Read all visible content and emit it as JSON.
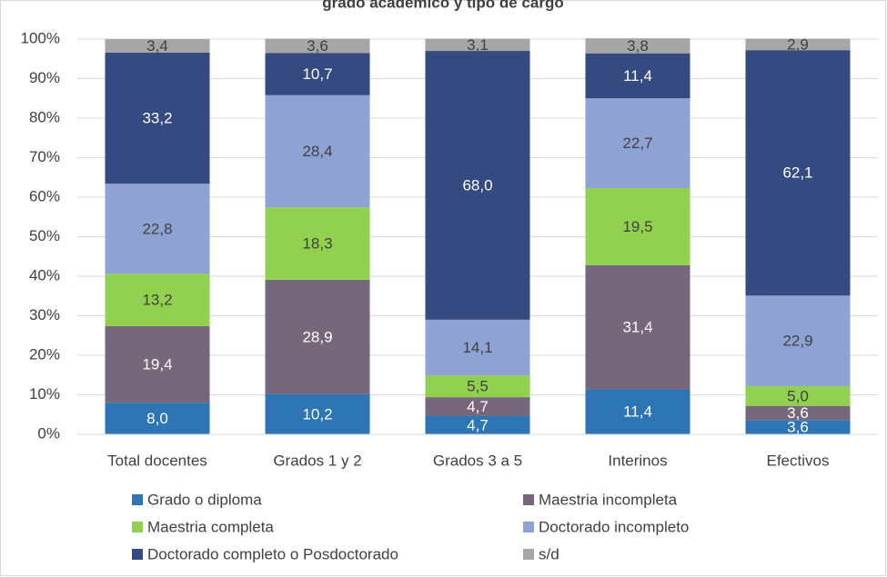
{
  "chart_data": {
    "type": "stacked_bar",
    "title": "grado académico y tipo de cargo",
    "categories": [
      "Total docentes",
      "Grados 1 y 2",
      "Grados 3 a 5",
      "Interinos",
      "Efectivos"
    ],
    "series": [
      {
        "name": "Grado o diploma",
        "color": "#2e75b6",
        "values": [
          8.0,
          10.2,
          4.7,
          11.4,
          3.6
        ],
        "value_labels": [
          "8,0",
          "10,2",
          "4,7",
          "11,4",
          "3,6"
        ]
      },
      {
        "name": "Maestria incompleta",
        "color": "#76677a",
        "values": [
          19.4,
          28.9,
          4.7,
          31.4,
          3.6
        ],
        "value_labels": [
          "19,4",
          "28,9",
          "4,7",
          "31,4",
          "3,6"
        ]
      },
      {
        "name": "Maestria completa",
        "color": "#92d050",
        "values": [
          13.2,
          18.3,
          5.5,
          19.5,
          5.0
        ],
        "value_labels": [
          "13,2",
          "18,3",
          "5,5",
          "19,5",
          "5,0"
        ]
      },
      {
        "name": "Doctorado incompleto",
        "color": "#8fa2d4",
        "values": [
          22.8,
          28.4,
          14.1,
          22.7,
          22.9
        ],
        "value_labels": [
          "22,8",
          "28,4",
          "14,1",
          "22,7",
          "22,9"
        ]
      },
      {
        "name": "Doctorado completo o Posdoctorado",
        "color": "#354a80",
        "values": [
          33.2,
          10.7,
          68.0,
          11.4,
          62.1
        ],
        "value_labels": [
          "33,2",
          "10,7",
          "68,0",
          "11,4",
          "62,1"
        ]
      },
      {
        "name": "s/d",
        "color": "#a6a6a6",
        "values": [
          3.4,
          3.6,
          3.1,
          3.8,
          2.9
        ],
        "value_labels": [
          "3,4",
          "3,6",
          "3,1",
          "3,8",
          "2,9"
        ]
      }
    ],
    "ylim": [
      0,
      100
    ],
    "yticks": [
      {
        "value": 0,
        "label": "0%"
      },
      {
        "value": 10,
        "label": "10%"
      },
      {
        "value": 20,
        "label": "20%"
      },
      {
        "value": 30,
        "label": "30%"
      },
      {
        "value": 40,
        "label": "40%"
      },
      {
        "value": 50,
        "label": "50%"
      },
      {
        "value": 60,
        "label": "60%"
      },
      {
        "value": 70,
        "label": "70%"
      },
      {
        "value": 80,
        "label": "80%"
      },
      {
        "value": 90,
        "label": "90%"
      },
      {
        "value": 100,
        "label": "100%"
      }
    ],
    "grid": true
  }
}
